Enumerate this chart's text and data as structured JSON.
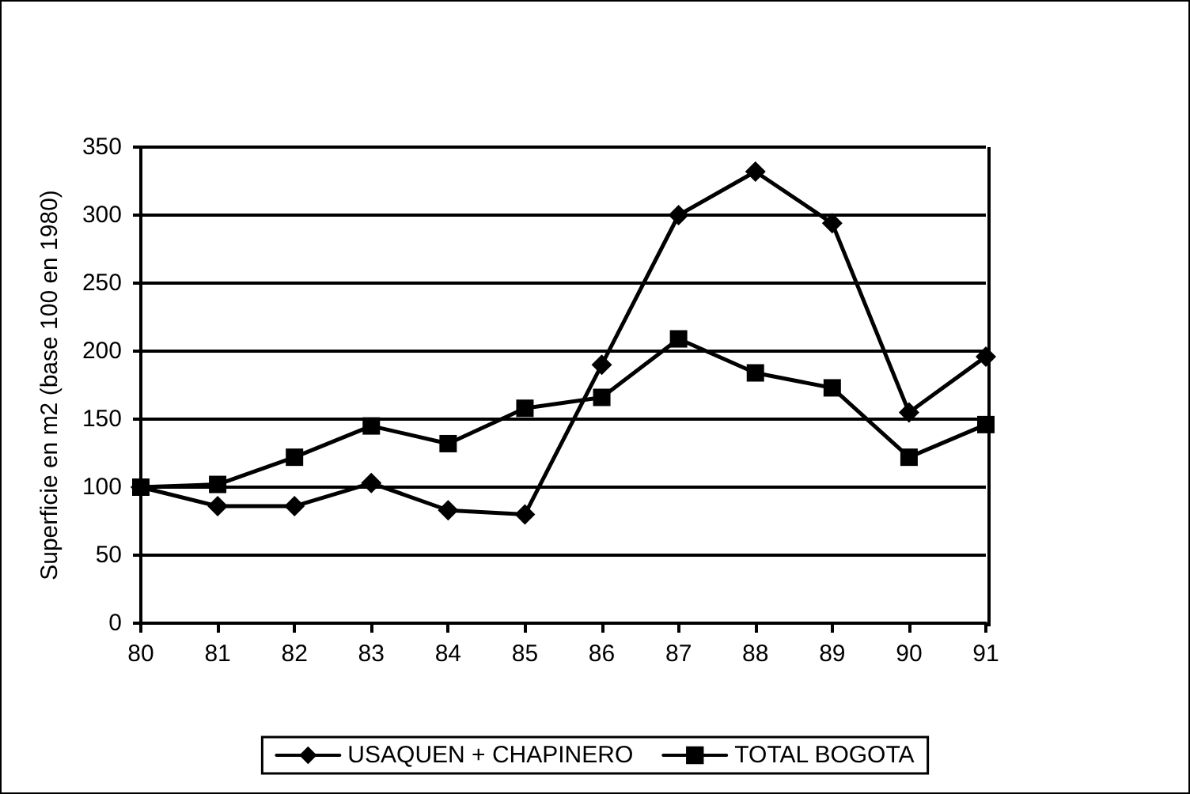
{
  "chart_data": {
    "type": "line",
    "ylabel": "Superficie en m2 (base 100 en 1980)",
    "categories": [
      "80",
      "81",
      "82",
      "83",
      "84",
      "85",
      "86",
      "87",
      "88",
      "89",
      "90",
      "91"
    ],
    "series": [
      {
        "name": "USAQUEN + CHAPINERO",
        "color": "#000000",
        "marker": "diamond",
        "values": [
          100,
          86,
          86,
          103,
          83,
          80,
          190,
          300,
          332,
          294,
          155,
          196
        ]
      },
      {
        "name": "TOTAL BOGOTA",
        "color": "#000000",
        "marker": "square",
        "values": [
          100,
          102,
          122,
          145,
          132,
          158,
          166,
          209,
          184,
          173,
          122,
          146
        ]
      }
    ],
    "ylim": [
      0,
      350
    ],
    "yticks": [
      0,
      50,
      100,
      150,
      200,
      250,
      300,
      350
    ],
    "grid": "y",
    "legend": "bottom",
    "line_style": "solid"
  }
}
